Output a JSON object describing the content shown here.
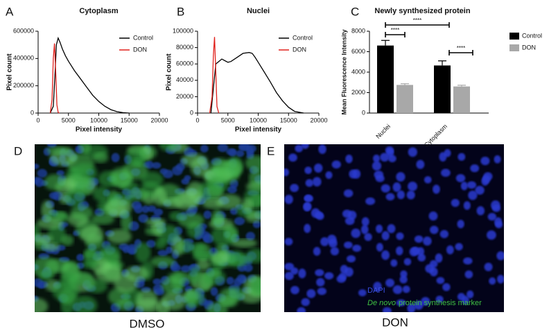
{
  "chart_data": [
    {
      "type": "line",
      "panel": "A",
      "title": "Cytoplasm",
      "x_label": "Pixel intensity",
      "y_label": "Pixel count",
      "xlim": [
        0,
        20000
      ],
      "xticks": [
        0,
        5000,
        10000,
        15000,
        20000
      ],
      "ylim": [
        0,
        600000
      ],
      "yticks": [
        0,
        200000,
        400000,
        600000
      ],
      "legend": "upper right",
      "series": [
        {
          "name": "Control",
          "color": "#000000",
          "x": [
            2000,
            2500,
            2800,
            3000,
            3300,
            3600,
            4000,
            4500,
            5000,
            6000,
            7000,
            8000,
            9000,
            10000,
            11000,
            12000,
            13000,
            14000,
            15000
          ],
          "values": [
            0,
            50000,
            300000,
            500000,
            550000,
            520000,
            470000,
            420000,
            380000,
            310000,
            250000,
            190000,
            130000,
            85000,
            50000,
            25000,
            10000,
            3000,
            0
          ]
        },
        {
          "name": "DON",
          "color": "#e0201b",
          "x": [
            2000,
            2300,
            2500,
            2700,
            2900,
            3100,
            3300,
            3500
          ],
          "values": [
            0,
            100000,
            400000,
            510000,
            300000,
            60000,
            5000,
            0
          ]
        }
      ]
    },
    {
      "type": "line",
      "panel": "B",
      "title": "Nuclei",
      "x_label": "Pixel intensity",
      "y_label": "Pixel count",
      "xlim": [
        0,
        20000
      ],
      "xticks": [
        0,
        5000,
        10000,
        15000,
        20000
      ],
      "ylim": [
        0,
        100000
      ],
      "yticks": [
        0,
        20000,
        40000,
        60000,
        80000,
        100000
      ],
      "legend": "upper right",
      "series": [
        {
          "name": "Control",
          "color": "#000000",
          "x": [
            2200,
            2600,
            3000,
            3500,
            4000,
            4500,
            5000,
            5500,
            6500,
            7500,
            8500,
            9000,
            9500,
            10000,
            11000,
            12000,
            13000,
            14000,
            15000,
            16000,
            17500
          ],
          "values": [
            0,
            30000,
            60000,
            63000,
            66000,
            64000,
            62000,
            63000,
            68000,
            73000,
            74000,
            73000,
            68000,
            62000,
            50000,
            38000,
            25000,
            15000,
            7000,
            2000,
            0
          ]
        },
        {
          "name": "DON",
          "color": "#e0201b",
          "x": [
            2000,
            2400,
            2600,
            2800,
            3000,
            3200,
            3500
          ],
          "values": [
            0,
            20000,
            70000,
            93000,
            50000,
            8000,
            0
          ]
        }
      ]
    },
    {
      "type": "bar",
      "panel": "C",
      "title": "Newly synthesized protein",
      "y_label": "Mean Fluorescence Intensity",
      "categories": [
        "Nuclei",
        "Cytoplasm"
      ],
      "ylim": [
        0,
        8000
      ],
      "yticks": [
        0,
        2000,
        4000,
        6000,
        8000
      ],
      "legend": "right",
      "series": [
        {
          "name": "Control",
          "color": "#000000",
          "values": [
            6600,
            4650
          ],
          "errors": [
            500,
            450
          ]
        },
        {
          "name": "DON",
          "color": "#a8a8a8",
          "values": [
            2750,
            2600
          ],
          "errors": [
            120,
            120
          ]
        }
      ],
      "annotations": [
        "****",
        "****",
        "****"
      ]
    }
  ],
  "images": [
    {
      "panel": "D",
      "caption": "DMSO"
    },
    {
      "panel": "E",
      "caption": "DON",
      "legend": {
        "blue": "DAPI",
        "italic": "De novo",
        "green": "protein synthesis marker"
      }
    }
  ]
}
